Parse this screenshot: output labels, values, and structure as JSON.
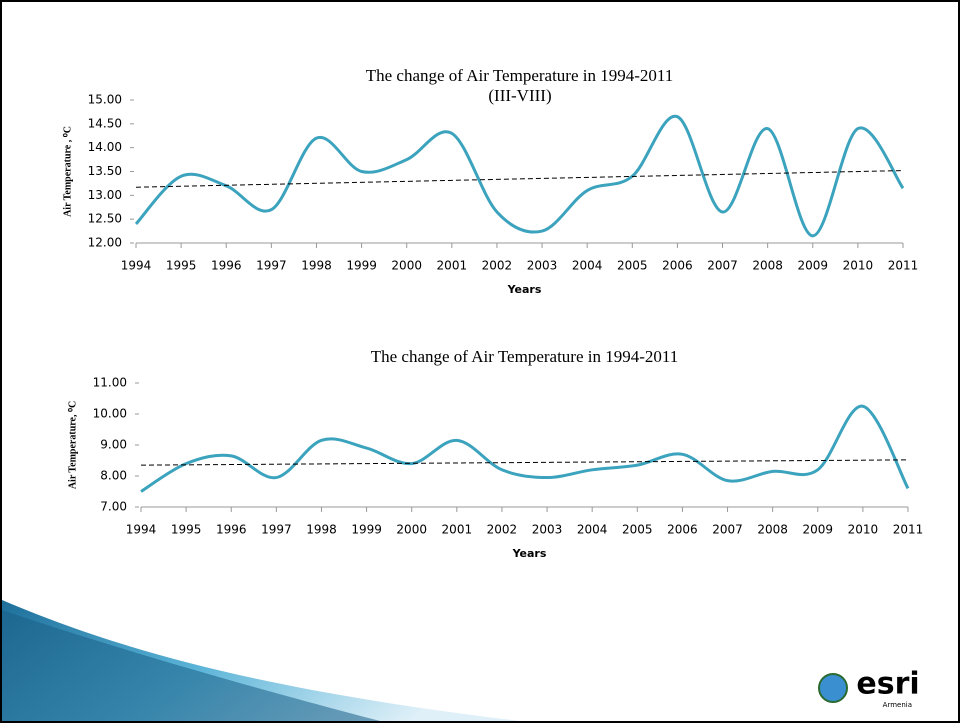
{
  "chart_data": [
    {
      "type": "line",
      "title": "The change of Air Temperature in 1994-2011",
      "subtitle": "(III-VIII)",
      "y_label": "Air Temperature , ⁰C",
      "x_label": "Years",
      "categories": [
        "1994",
        "1995",
        "1996",
        "1997",
        "1998",
        "1999",
        "2000",
        "2001",
        "2002",
        "2003",
        "2004",
        "2005",
        "2006",
        "2007",
        "2008",
        "2009",
        "2010",
        "2011"
      ],
      "values": [
        12.4,
        13.4,
        13.2,
        12.7,
        14.2,
        13.5,
        13.75,
        14.3,
        12.65,
        12.25,
        13.1,
        13.4,
        14.65,
        12.65,
        14.4,
        12.15,
        14.4,
        13.15
      ],
      "color": "#3ba3bd",
      "smooth": true,
      "trendline": [
        13.17,
        13.52
      ],
      "ylim": [
        12,
        15
      ],
      "yticks": [
        {
          "value": 12,
          "label": "12.00"
        },
        {
          "value": 12.5,
          "label": "12.50"
        },
        {
          "value": 13,
          "label": "13.00"
        },
        {
          "value": 13.5,
          "label": "13.50"
        },
        {
          "value": 14,
          "label": "14.00"
        },
        {
          "value": 14.5,
          "label": "14.50"
        },
        {
          "value": 15,
          "label": "15.00"
        }
      ],
      "grid": false
    },
    {
      "type": "line",
      "title": "The change of Air Temperature in  1994-2011",
      "y_label": "Air Temperature,  ⁰C",
      "x_label": "Years",
      "categories": [
        "1994",
        "1995",
        "1996",
        "1997",
        "1998",
        "1999",
        "2000",
        "2001",
        "2002",
        "2003",
        "2004",
        "2005",
        "2006",
        "2007",
        "2008",
        "2009",
        "2010",
        "2011"
      ],
      "values": [
        7.5,
        8.4,
        8.65,
        7.95,
        9.15,
        8.9,
        8.4,
        9.15,
        8.2,
        7.95,
        8.2,
        8.35,
        8.7,
        7.85,
        8.15,
        8.2,
        10.25,
        7.6
      ],
      "color": "#3ba3bd",
      "smooth": true,
      "trendline": [
        8.35,
        8.52
      ],
      "ylim": [
        7,
        11
      ],
      "yticks": [
        {
          "value": 7,
          "label": "7.00"
        },
        {
          "value": 8,
          "label": "8.00"
        },
        {
          "value": 9,
          "label": "9.00"
        },
        {
          "value": 10,
          "label": "10.00"
        },
        {
          "value": 11,
          "label": "11.00"
        }
      ],
      "grid": false
    }
  ],
  "logo": {
    "text": "esri",
    "subtext": "Armenia"
  }
}
